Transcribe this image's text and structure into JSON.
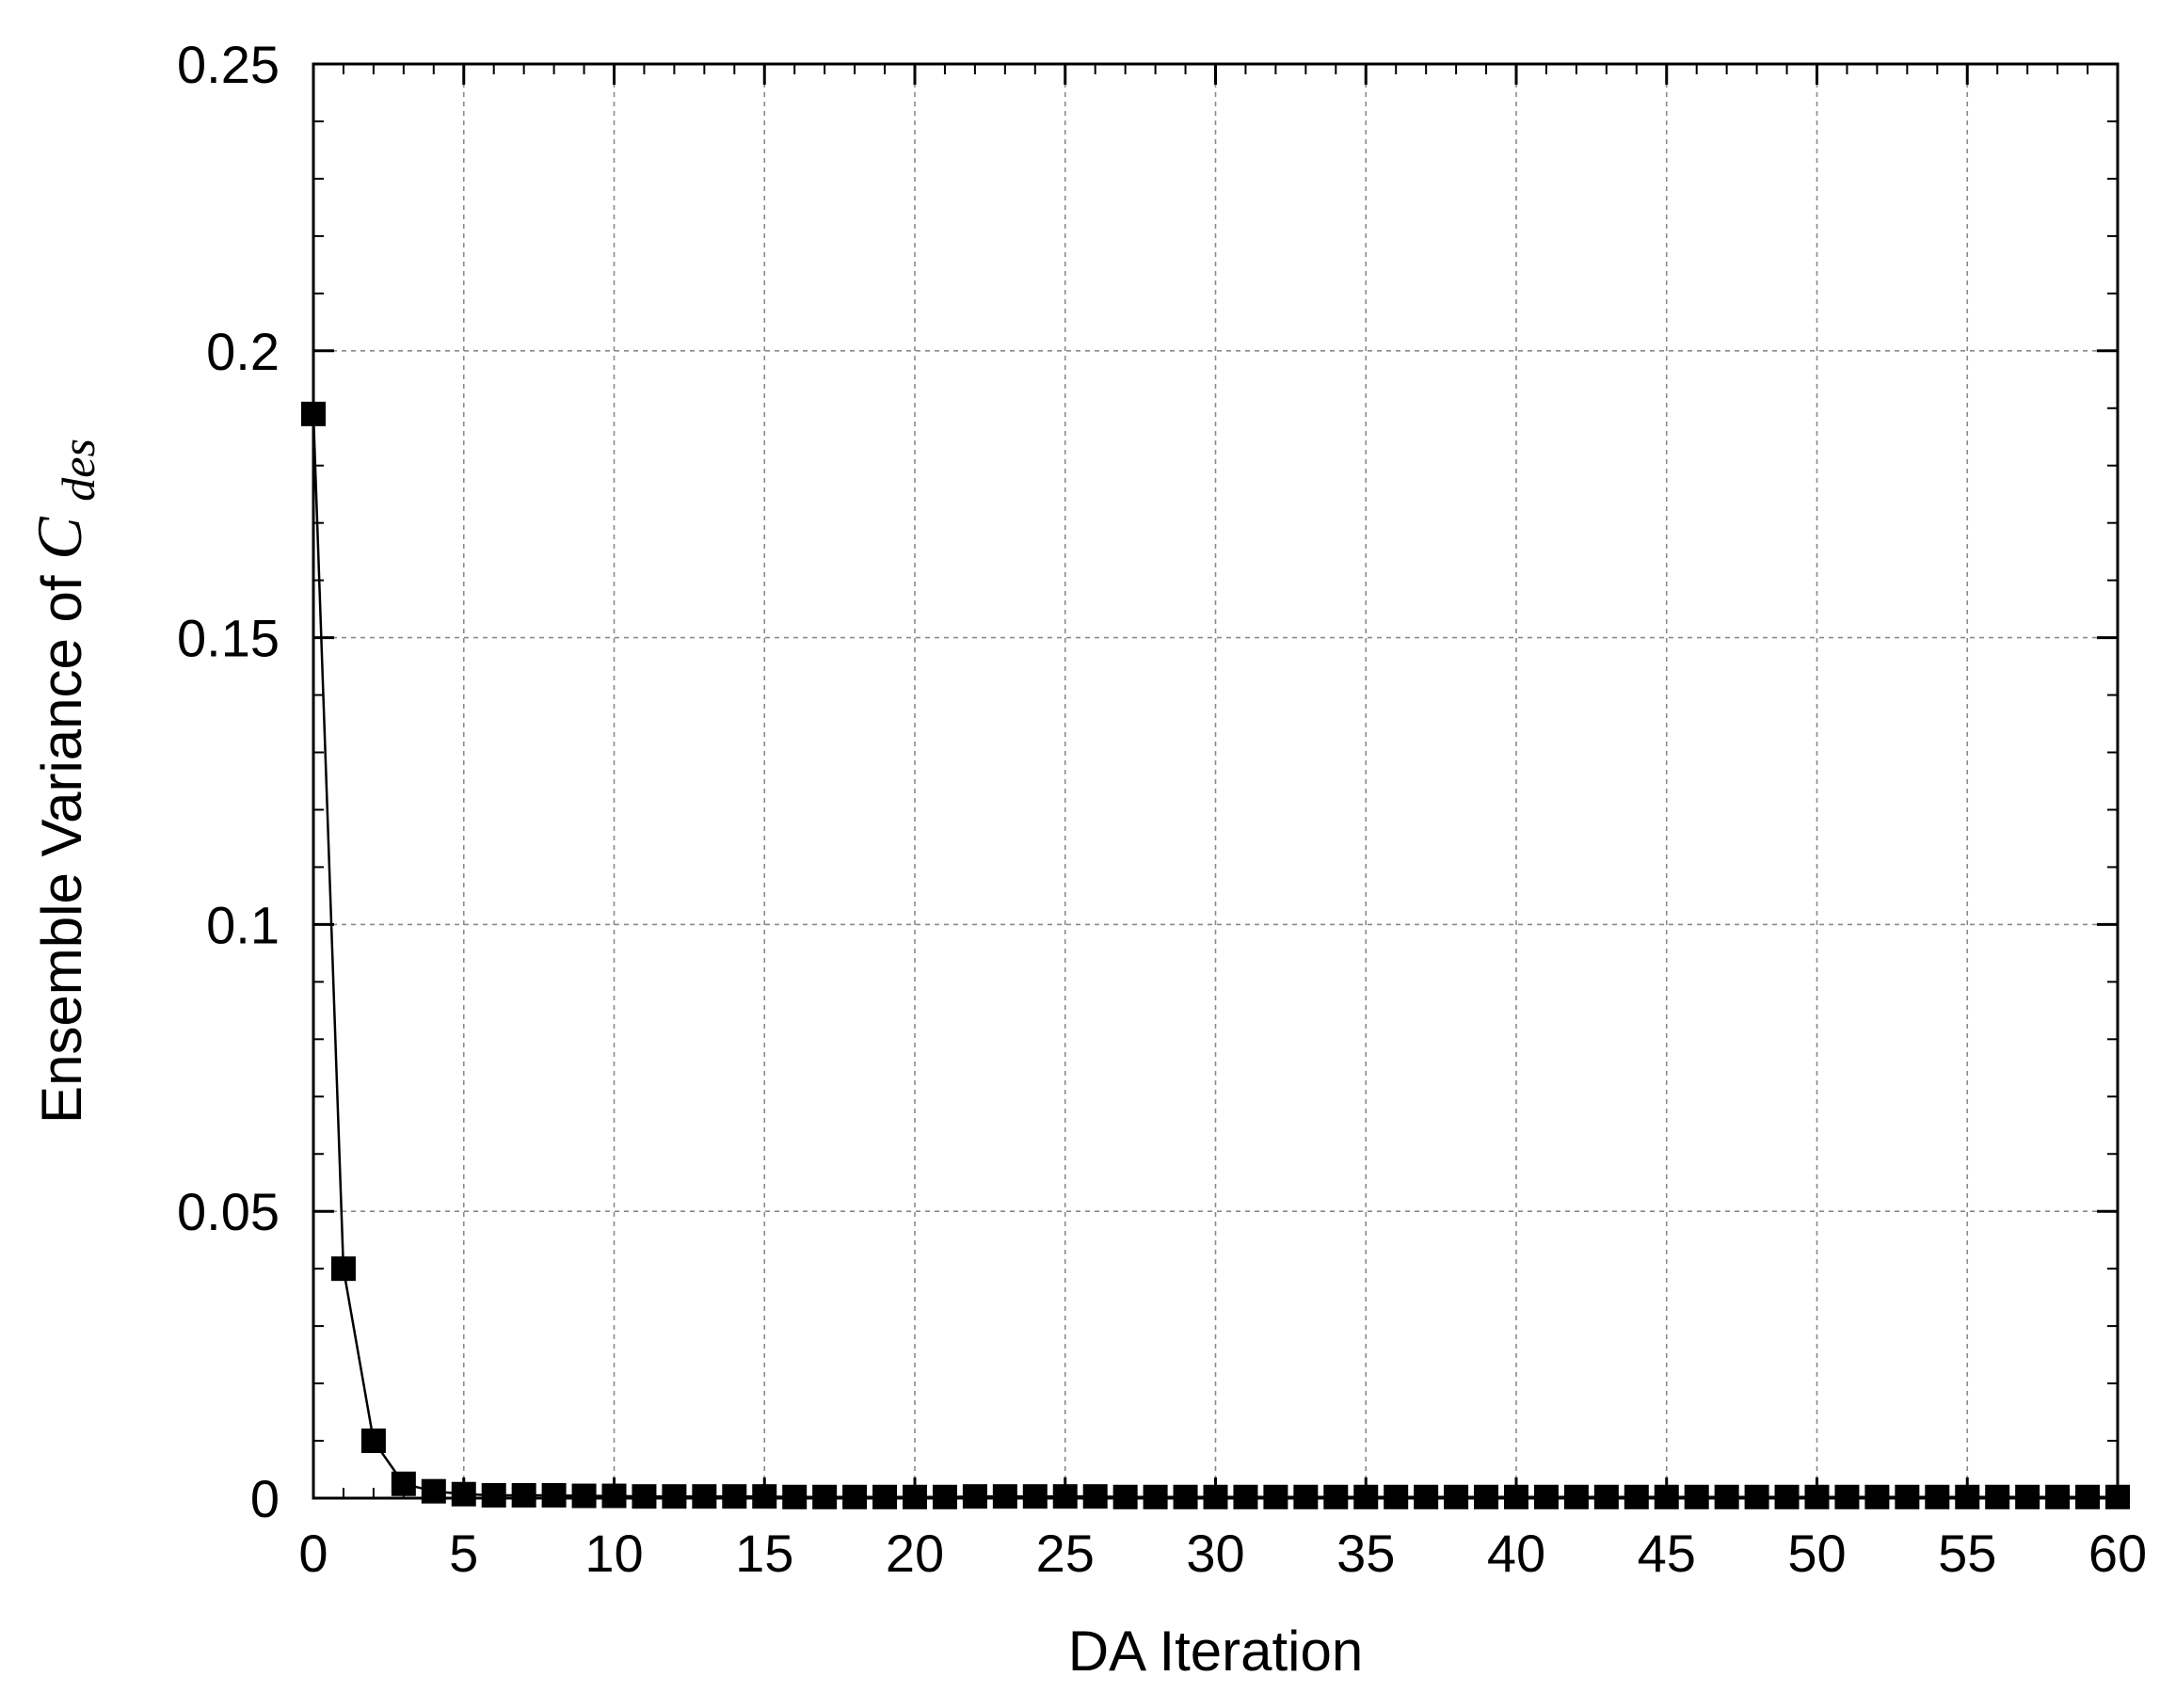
{
  "chart_data": {
    "type": "line",
    "title": "",
    "xlabel": "DA Iteration",
    "ylabel": {
      "prefix": "Ensemble Variance of ",
      "symbol": "C",
      "subscript": "des"
    },
    "xlim": [
      0,
      60
    ],
    "ylim": [
      0,
      0.25
    ],
    "x_ticks": [
      "0",
      "5",
      "10",
      "15",
      "20",
      "25",
      "30",
      "35",
      "40",
      "45",
      "50",
      "55",
      "60"
    ],
    "y_ticks": [
      "0",
      "0.05",
      "0.1",
      "0.15",
      "0.2",
      "0.25"
    ],
    "grid": true,
    "legend": "none",
    "series": [
      {
        "marker": "filled-square",
        "color": "#000000",
        "x": [
          0,
          1,
          2,
          3,
          4,
          5,
          6,
          7,
          8,
          9,
          10,
          11,
          12,
          13,
          14,
          15,
          16,
          17,
          18,
          19,
          20,
          21,
          22,
          23,
          24,
          25,
          26,
          27,
          28,
          29,
          30,
          31,
          32,
          33,
          34,
          35,
          36,
          37,
          38,
          39,
          40,
          41,
          42,
          43,
          44,
          45,
          46,
          47,
          48,
          49,
          50,
          51,
          52,
          53,
          54,
          55,
          56,
          57,
          58,
          59,
          60
        ],
        "y": [
          0.189,
          0.04,
          0.01,
          0.0025,
          0.0012,
          0.0007,
          0.0005,
          0.0005,
          0.0005,
          0.0004,
          0.0004,
          0.0003,
          0.0003,
          0.0003,
          0.0003,
          0.0003,
          0.0002,
          0.0002,
          0.0002,
          0.0002,
          0.0002,
          0.0002,
          0.0003,
          0.0003,
          0.0003,
          0.0003,
          0.0003,
          0.0002,
          0.0002,
          0.0002,
          0.0002,
          0.0002,
          0.0002,
          0.0002,
          0.0002,
          0.0002,
          0.0002,
          0.0002,
          0.0002,
          0.0002,
          0.0002,
          0.0002,
          0.0002,
          0.0002,
          0.0002,
          0.0002,
          0.0002,
          0.0002,
          0.0002,
          0.0002,
          0.0002,
          0.0002,
          0.0002,
          0.0002,
          0.0002,
          0.0002,
          0.0002,
          0.0002,
          0.0002,
          0.0002,
          0.0002
        ]
      }
    ]
  }
}
